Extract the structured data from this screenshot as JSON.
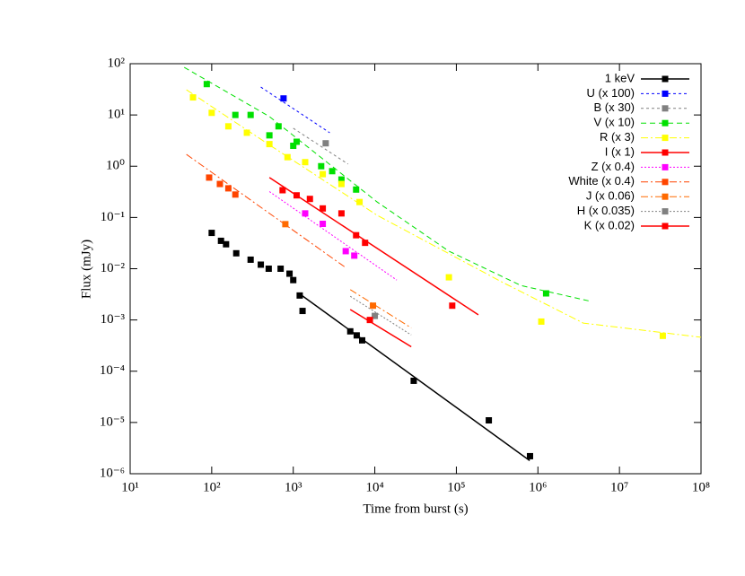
{
  "chart_data": {
    "type": "scatter",
    "x_label": "Time from burst (s)",
    "y_label": "Flux (mJy)",
    "xlog": true,
    "ylog": true,
    "legend": "top-right",
    "xlim": [
      10,
      100000000
    ],
    "ylim": [
      1e-06,
      100
    ],
    "xticks": [
      {
        "value": 10,
        "label": "10¹"
      },
      {
        "value": 100,
        "label": "10²"
      },
      {
        "value": 1000,
        "label": "10³"
      },
      {
        "value": 10000,
        "label": "10⁴"
      },
      {
        "value": 100000,
        "label": "10⁵"
      },
      {
        "value": 1000000,
        "label": "10⁶"
      },
      {
        "value": 10000000,
        "label": "10⁷"
      },
      {
        "value": 100000000,
        "label": "10⁸"
      }
    ],
    "yticks": [
      {
        "value": 1e-06,
        "label": "10⁻⁶"
      },
      {
        "value": 1e-05,
        "label": "10⁻⁵"
      },
      {
        "value": 0.0001,
        "label": "10⁻⁴"
      },
      {
        "value": 0.001,
        "label": "10⁻³"
      },
      {
        "value": 0.01,
        "label": "10⁻²"
      },
      {
        "value": 0.1,
        "label": "10⁻¹"
      },
      {
        "value": 1,
        "label": "10⁰"
      },
      {
        "value": 10,
        "label": "10¹"
      },
      {
        "value": 100,
        "label": "10²"
      }
    ],
    "series": [
      {
        "name": "1 keV",
        "color": "#000000",
        "dash": "none",
        "x": [
          100,
          130,
          150,
          200,
          300,
          400,
          500,
          700,
          900,
          1000,
          1200,
          1300,
          5000,
          6000,
          7000,
          30000,
          250000,
          800000
        ],
        "values": [
          0.05,
          0.035,
          0.03,
          0.02,
          0.015,
          0.012,
          0.01,
          0.01,
          0.008,
          0.006,
          0.003,
          0.0015,
          0.0006,
          0.0005,
          0.0004,
          6.5e-05,
          1.1e-05,
          2.2e-06
        ],
        "fit": {
          "x": [
            1175,
            794000
          ],
          "values": [
            0.0033,
            1.8e-06
          ]
        }
      },
      {
        "name": "U (x 100)",
        "color": "#0000ff",
        "dash": "3,3",
        "x": [
          760
        ],
        "values": [
          21
        ],
        "fit": {
          "x": [
            400,
            2800
          ],
          "values": [
            35,
            4.5
          ]
        }
      },
      {
        "name": "B (x 30)",
        "color": "#808080",
        "dash": "3,3",
        "x": [
          2500
        ],
        "values": [
          2.8
        ],
        "fit": {
          "x": [
            1000,
            4700
          ],
          "values": [
            5.5,
            1.1
          ]
        }
      },
      {
        "name": "V (x 10)",
        "color": "#00e000",
        "dash": "6,4",
        "x": [
          87,
          195,
          300,
          510,
          660,
          1000,
          1100,
          2200,
          3000,
          3900,
          5900,
          1260000
        ],
        "values": [
          40,
          10,
          10,
          4,
          6,
          2.5,
          3,
          1,
          0.8,
          0.55,
          0.35,
          0.0033
        ],
        "fit": {
          "x": [
            46,
            510,
            10700,
            81000,
            620000,
            4500000
          ],
          "values": [
            85,
            9.3,
            0.2,
            0.022,
            0.0047,
            0.0023
          ]
        }
      },
      {
        "name": "R (x 3)",
        "color": "#ffff00",
        "dash": "8,3,2,3",
        "x": [
          59,
          100,
          160,
          270,
          510,
          850,
          1400,
          2300,
          3900,
          6500,
          81000,
          1100000,
          34000000
        ],
        "values": [
          22,
          11,
          6,
          4.5,
          2.7,
          1.5,
          1.2,
          0.7,
          0.45,
          0.2,
          0.0068,
          0.00093,
          0.00049
        ],
        "fit": {
          "x": [
            49,
            510,
            10700,
            370000,
            3600000,
            100000000
          ],
          "values": [
            31,
            2.6,
            0.11,
            0.0054,
            0.00087,
            0.00046
          ]
        }
      },
      {
        "name": "I (x 1)",
        "color": "#ff0000",
        "dash": "none",
        "x": [
          740,
          1100,
          1600,
          2300,
          3900,
          5900,
          7600,
          89000
        ],
        "values": [
          0.34,
          0.27,
          0.23,
          0.15,
          0.12,
          0.045,
          0.032,
          0.0019
        ],
        "fit": {
          "x": [
            510,
            186000
          ],
          "values": [
            0.6,
            0.00126
          ]
        }
      },
      {
        "name": "Z (x 0.4)",
        "color": "#ff00ff",
        "dash": "2,2",
        "x": [
          1400,
          2300,
          4400,
          5600
        ],
        "values": [
          0.12,
          0.075,
          0.022,
          0.018
        ],
        "fit": {
          "x": [
            510,
            18600
          ],
          "values": [
            0.32,
            0.006
          ]
        }
      },
      {
        "name": "White (x 0.4)",
        "color": "#ff4500",
        "dash": "8,3,2,3",
        "x": [
          93,
          126,
          160,
          195
        ],
        "values": [
          0.6,
          0.45,
          0.37,
          0.28
        ],
        "fit": {
          "x": [
            49,
            4400
          ],
          "values": [
            1.7,
            0.0105
          ]
        }
      },
      {
        "name": "J (x 0.06)",
        "color": "#ff6a00",
        "dash": "8,3,2,3",
        "x": [
          800,
          9500
        ],
        "values": [
          0.074,
          0.0019
        ],
        "fit": {
          "x": [
            5000,
            28000
          ],
          "values": [
            0.0039,
            0.0007
          ]
        }
      },
      {
        "name": "H (x 0.035)",
        "color": "#808080",
        "dash": "2,2",
        "x": [
          10000
        ],
        "values": [
          0.0012
        ],
        "fit": {
          "x": [
            5000,
            28000
          ],
          "values": [
            0.0029,
            0.00051
          ]
        }
      },
      {
        "name": "K (x 0.02)",
        "color": "#ff0000",
        "dash": "none",
        "x": [
          8700
        ],
        "values": [
          0.001
        ],
        "fit": {
          "x": [
            5000,
            28000
          ],
          "values": [
            0.0016,
            0.0003
          ]
        }
      }
    ]
  }
}
